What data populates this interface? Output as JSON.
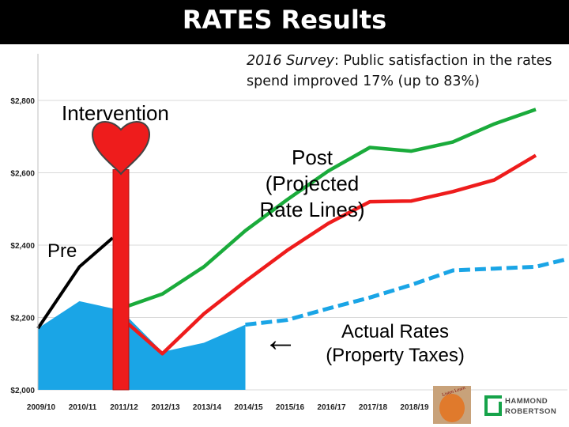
{
  "title": "RATES Results",
  "note": {
    "survey_italic": "2016 Survey",
    "text": ": Public satisfaction in the rates spend improved 17% (up to 83%)"
  },
  "labels": {
    "intervention": "Intervention",
    "pre": "Pre",
    "post_line1": "Post",
    "post_line2": "(Projected",
    "post_line3": "Rate Lines)",
    "actual_line1": "Actual Rates",
    "actual_line2": "(Property Taxes)",
    "arrow": "←"
  },
  "logos": {
    "stamp_text": "Listen Learn",
    "brand_line1": "HAMMOND",
    "brand_line2": "ROBERTSON"
  },
  "colors": {
    "black_line": "#000000",
    "green_line": "#1aab3b",
    "red_line": "#ee1c1c",
    "blue_area": "#1aa5e6",
    "blue_dashed": "#1aa5e6",
    "intervention_bar": "#ee1c1c",
    "heart": "#ee1c1c",
    "brand_green": "#16a34a",
    "brand_text": "#4a4a4a"
  },
  "icons": [
    "heart-icon",
    "left-arrow-icon",
    "listen-learn-stamp-icon",
    "hammond-robertson-logo-icon"
  ],
  "chart_data": {
    "type": "line",
    "categories": [
      "2009/10",
      "2010/11",
      "2011/12",
      "2012/13",
      "2013/14",
      "2014/15",
      "2015/16",
      "2016/17",
      "2017/18",
      "2018/19"
    ],
    "y_ticks": [
      2000,
      2200,
      2400,
      2600,
      2800
    ],
    "y_tick_labels": [
      "$2,000",
      "$2,200",
      "$2,400",
      "$2,600",
      "$2,800"
    ],
    "ylim": [
      2000,
      2900
    ],
    "x_extent": [
      2009.5,
      2022.2
    ],
    "grid": true,
    "series": [
      {
        "key": "pre_black",
        "style": "line",
        "points": [
          [
            2009.5,
            2170
          ],
          [
            2010.5,
            2340
          ],
          [
            2011.3,
            2420
          ]
        ]
      },
      {
        "key": "green",
        "style": "line",
        "points": [
          [
            2011.5,
            2225
          ],
          [
            2012.5,
            2265
          ],
          [
            2013.5,
            2340
          ],
          [
            2014.5,
            2440
          ],
          [
            2015.5,
            2525
          ],
          [
            2016.5,
            2605
          ],
          [
            2017.5,
            2670
          ],
          [
            2018.5,
            2660
          ],
          [
            2019.5,
            2685
          ],
          [
            2020.5,
            2735
          ],
          [
            2021.5,
            2775
          ]
        ]
      },
      {
        "key": "red",
        "style": "line",
        "points": [
          [
            2011.5,
            2200
          ],
          [
            2012.5,
            2100
          ],
          [
            2013.5,
            2210
          ],
          [
            2014.5,
            2300
          ],
          [
            2015.5,
            2385
          ],
          [
            2016.5,
            2460
          ],
          [
            2017.5,
            2520
          ],
          [
            2018.5,
            2522
          ],
          [
            2019.5,
            2548
          ],
          [
            2020.5,
            2580
          ],
          [
            2021.5,
            2648
          ]
        ]
      },
      {
        "key": "actual_area",
        "style": "area",
        "points": [
          [
            2009.5,
            2170
          ],
          [
            2010.5,
            2245
          ],
          [
            2011.5,
            2220
          ],
          [
            2012.5,
            2105
          ],
          [
            2013.5,
            2130
          ],
          [
            2014.5,
            2180
          ]
        ]
      },
      {
        "key": "actual_dashed",
        "style": "dashed",
        "points": [
          [
            2014.5,
            2180
          ],
          [
            2015.5,
            2193
          ],
          [
            2016.5,
            2225
          ],
          [
            2017.5,
            2255
          ],
          [
            2018.5,
            2290
          ],
          [
            2019.5,
            2330
          ],
          [
            2020.5,
            2335
          ],
          [
            2021.5,
            2340
          ],
          [
            2022.2,
            2360
          ]
        ]
      }
    ],
    "intervention_year": 2011.5,
    "intervention_top": 2600
  }
}
